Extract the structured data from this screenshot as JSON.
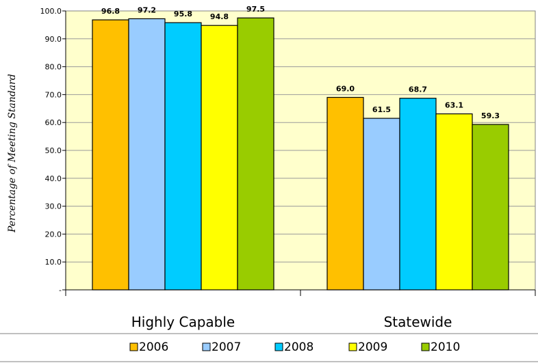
{
  "chart_data": {
    "type": "bar",
    "categories": [
      "Highly Capable",
      "Statewide"
    ],
    "series": [
      {
        "name": "2006",
        "color": "#FFC000",
        "values": [
          96.8,
          69.0
        ]
      },
      {
        "name": "2007",
        "color": "#99CCFF",
        "values": [
          97.2,
          61.5
        ]
      },
      {
        "name": "2008",
        "color": "#00CCFF",
        "values": [
          95.8,
          68.7
        ]
      },
      {
        "name": "2009",
        "color": "#FFFF00",
        "values": [
          94.8,
          63.1
        ]
      },
      {
        "name": "2010",
        "color": "#99CC00",
        "values": [
          97.5,
          59.3
        ]
      }
    ],
    "data_labels": [
      [
        "96.8",
        "69.0"
      ],
      [
        "97.2",
        "61.5"
      ],
      [
        "95.8",
        "68.7"
      ],
      [
        "94.8",
        "63.1"
      ],
      [
        "97.5",
        "59.3"
      ]
    ],
    "ylabel": "Percentage of Meeting Standard",
    "ylim": [
      0,
      100
    ],
    "yticks": [
      "-",
      "10.0",
      "20.0",
      "30.0",
      "40.0",
      "50.0",
      "60.0",
      "70.0",
      "80.0",
      "90.0",
      "100.0"
    ],
    "grid": true,
    "plot_background": "#FFFFCC",
    "legend_position": "bottom"
  }
}
